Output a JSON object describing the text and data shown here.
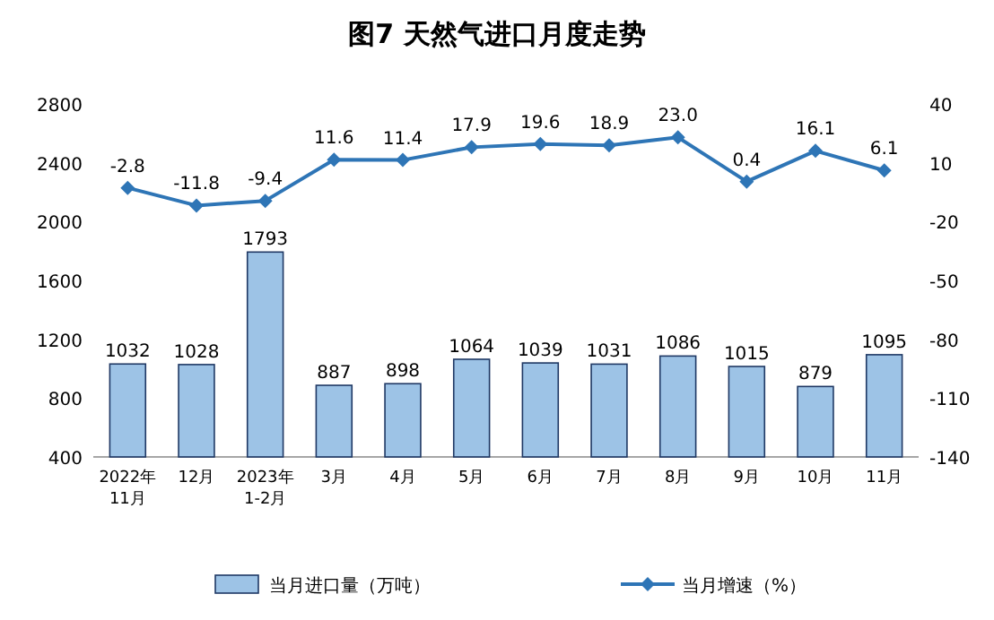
{
  "chart_data": {
    "type": "bar",
    "title": "图7  天然气进口月度走势",
    "categories": [
      "2022年\n11月",
      "12月",
      "2023年\n1-2月",
      "3月",
      "4月",
      "5月",
      "6月",
      "7月",
      "8月",
      "9月",
      "10月",
      "11月"
    ],
    "series": [
      {
        "name": "当月进口量（万吨）",
        "color": "#9dc3e6",
        "values": [
          1032,
          1028,
          1793,
          887,
          898,
          1064,
          1039,
          1031,
          1086,
          1015,
          879,
          1095
        ]
      },
      {
        "name": "当月增速（%）",
        "type": "line",
        "axis": "y2",
        "color": "#2e75b6",
        "marker": "diamond",
        "values": [
          -2.8,
          -11.8,
          -9.4,
          11.6,
          11.4,
          17.9,
          19.6,
          18.9,
          23.0,
          0.4,
          16.1,
          6.1
        ],
        "value_labels": [
          "-2.8",
          "-11.8",
          "-9.4",
          "11.6",
          "11.4",
          "17.9",
          "19.6",
          "18.9",
          "23.0",
          "0.4",
          "16.1",
          "6.1"
        ]
      }
    ],
    "ylim": [
      400,
      2800
    ],
    "yticks": [
      400,
      800,
      1200,
      1600,
      2000,
      2400,
      2800
    ],
    "y2lim": [
      -140,
      40
    ],
    "y2ticks": [
      -140,
      -110,
      -80,
      -50,
      -20,
      10,
      40
    ],
    "data_labels": true,
    "legend": "bottom",
    "grid": false
  }
}
